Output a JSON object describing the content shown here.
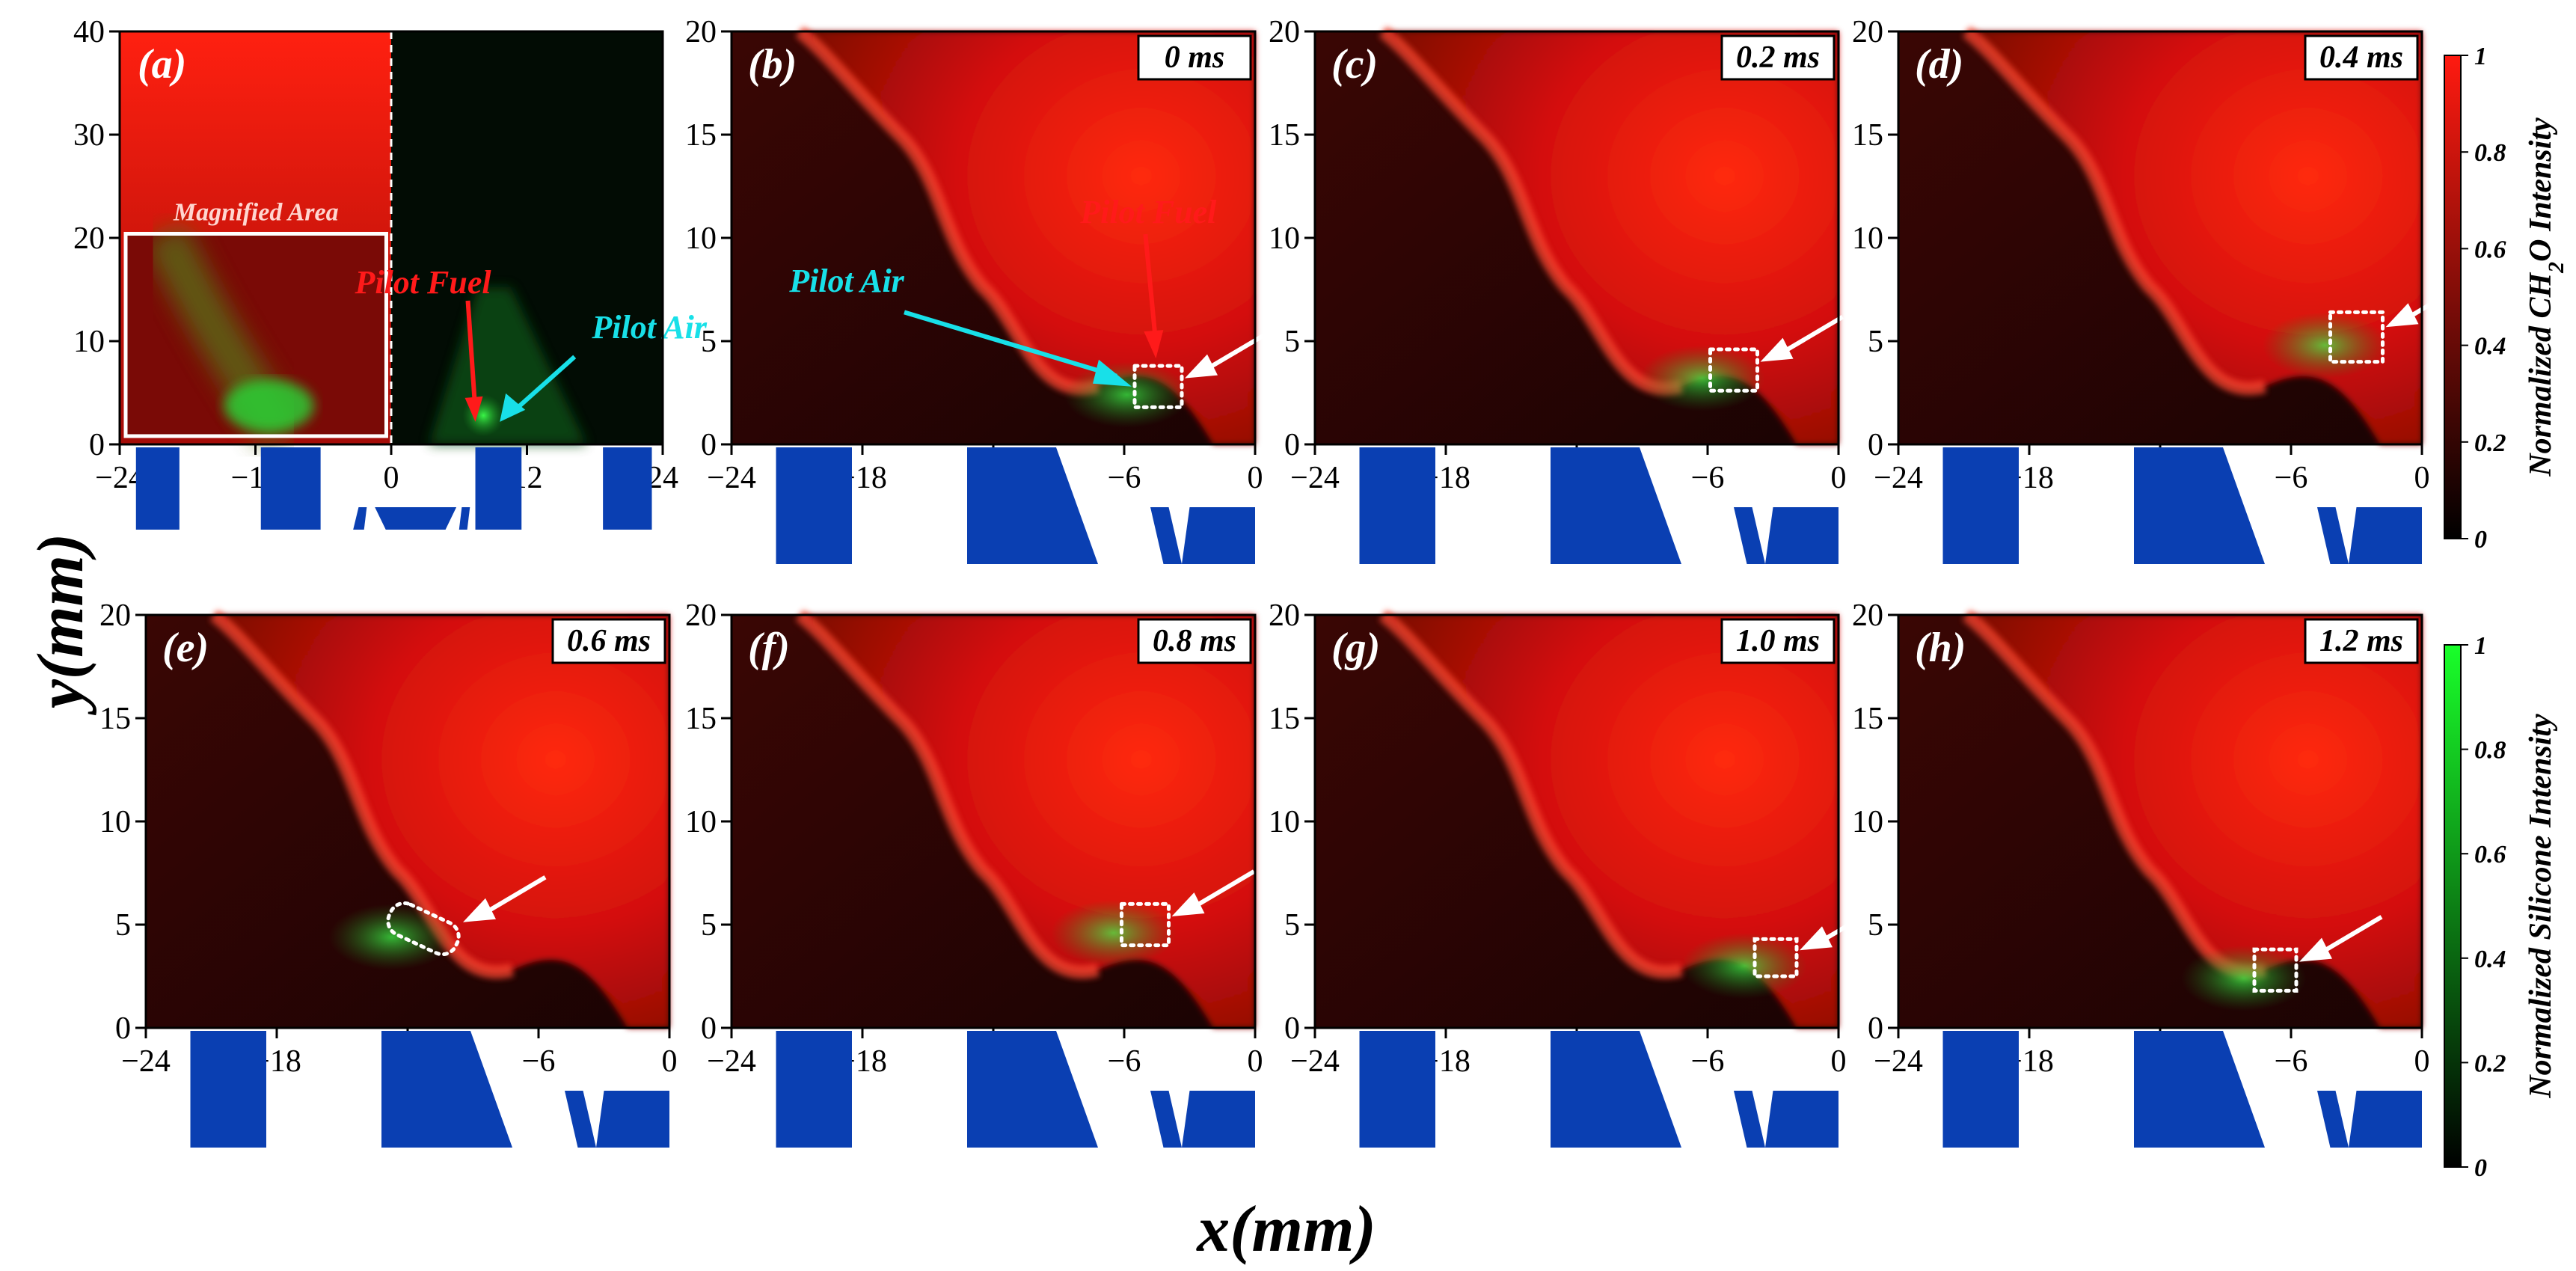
{
  "axis_labels": {
    "y_var": "y",
    "y_unit": "mm",
    "x_var": "x",
    "x_unit": "mm"
  },
  "panel_a": {
    "letter": "(a)",
    "inset_label": "Magnified Area",
    "annotations": {
      "fuel": "Pilot Fuel",
      "air": "Pilot Air"
    },
    "y_ticks": [
      "40",
      "30",
      "20",
      "10",
      "0"
    ],
    "x_ticks": [
      "−24",
      "−12",
      "0",
      "12",
      "24"
    ]
  },
  "panels": [
    {
      "letter": "(b)",
      "time": "0 ms",
      "fuel": "Pilot Fuel",
      "air": "Pilot Air"
    },
    {
      "letter": "(c)",
      "time": "0.2 ms"
    },
    {
      "letter": "(d)",
      "time": "0.4 ms"
    },
    {
      "letter": "(e)",
      "time": "0.6 ms"
    },
    {
      "letter": "(f)",
      "time": "0.8 ms"
    },
    {
      "letter": "(g)",
      "time": "1.0 ms"
    },
    {
      "letter": "(h)",
      "time": "1.2 ms"
    }
  ],
  "y_ticks": [
    "20",
    "15",
    "10",
    "5",
    "0"
  ],
  "x_ticks": [
    "−24",
    "−18",
    "−12",
    "−6",
    "0"
  ],
  "colorbars": [
    {
      "label_pre": "Normalized CH",
      "label_sub": "2",
      "label_post": "O Intensity",
      "ticks": [
        "1",
        "0.8",
        "0.6",
        "0.4",
        "0.2",
        "0"
      ],
      "color": "#ff1a10"
    },
    {
      "label_pre": "Normalized Silicone Intensity",
      "label_sub": "",
      "label_post": "",
      "ticks": [
        "1",
        "0.8",
        "0.6",
        "0.4",
        "0.2",
        "0"
      ],
      "color": "#19ff2a"
    }
  ],
  "colors": {
    "burner": "#0a3fb2",
    "flame": "#e01010",
    "seed": "#1fd63a",
    "air_arrow": "#18e0e8",
    "fuel_arrow": "#ff1a1a"
  }
}
